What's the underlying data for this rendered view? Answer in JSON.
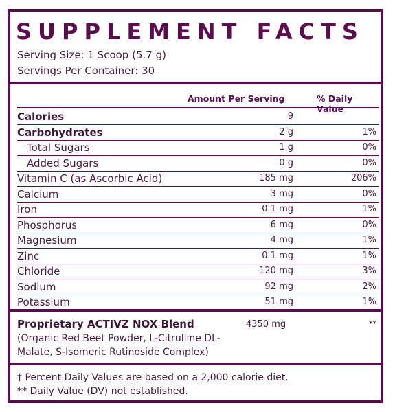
{
  "title": "SUPPLEMENT FACTS",
  "serving_size": "Serving Size: 1 Scoop (5.7 g)",
  "servings_per_container": "Servings Per Container: 30",
  "headers": {
    "amount": "Amount Per Serving",
    "daily_value": "% Daily Value"
  },
  "rows": [
    {
      "label": "Calories",
      "amount": "9",
      "dv": ""
    },
    {
      "label": "Carbohydrates",
      "amount": "2 g",
      "dv": "1%"
    },
    {
      "label": "Total Sugars",
      "amount": "1 g",
      "dv": "0%"
    },
    {
      "label": "Added Sugars",
      "amount": "0 g",
      "dv": "0%"
    },
    {
      "label": "Vitamin C (as Ascorbic Acid)",
      "amount": "185 mg",
      "dv": "206%"
    },
    {
      "label": "Calcium",
      "amount": "3 mg",
      "dv": "0%"
    },
    {
      "label": "Iron",
      "amount": "0.1 mg",
      "dv": "1%"
    },
    {
      "label": "Phosphorus",
      "amount": "6 mg",
      "dv": "0%"
    },
    {
      "label": "Magnesium",
      "amount": "4 mg",
      "dv": "1%"
    },
    {
      "label": "Zinc",
      "amount": "0.1 mg",
      "dv": "1%"
    },
    {
      "label": "Chloride",
      "amount": "120 mg",
      "dv": "3%"
    },
    {
      "label": "Sodium",
      "amount": "92 mg",
      "dv": "2%"
    },
    {
      "label": "Potassium",
      "amount": "51 mg",
      "dv": "1%"
    }
  ],
  "blend": {
    "name": "Proprietary ACTIVZ NOX Blend",
    "amount": "4350 mg",
    "dv": "**",
    "description": "(Organic Red Beet Powder, L-Citrulline DL-Malate, S-Isomeric Rutinoside Complex)"
  },
  "footnotes": [
    "† Percent Daily Values are based on a 2,000 calorie diet.",
    "** Daily Value (DV) not established."
  ],
  "colors": {
    "accent": "#5c0d4f",
    "text": "#4a1d44"
  }
}
